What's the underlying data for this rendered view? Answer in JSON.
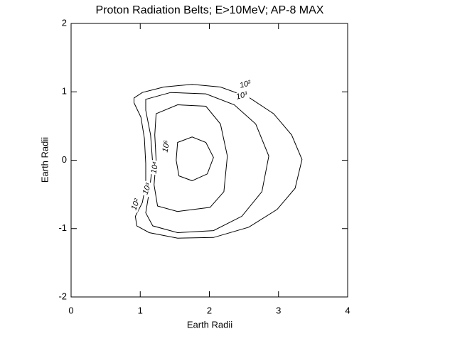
{
  "chart_data": {
    "type": "contour",
    "title": "Proton Radiation Belts; E>10MeV; AP-8 MAX",
    "x_label": "Earth Radii",
    "y_label": "Earth Radii",
    "xlim": [
      0,
      4
    ],
    "ylim": [
      -2,
      2
    ],
    "xticks": [
      0,
      1,
      2,
      3,
      4
    ],
    "yticks": [
      -2,
      -1,
      0,
      1,
      2
    ],
    "color": "#000000",
    "contours": [
      {
        "level": {
          "value": 100,
          "label": "10²"
        },
        "x": [
          0.91,
          1.03,
          1.34,
          1.75,
          2.16,
          2.57,
          2.93,
          3.19,
          3.34,
          3.24,
          2.98,
          2.57,
          2.06,
          1.54,
          1.13,
          0.95,
          0.93,
          1.03,
          1.08,
          1.08,
          1.06,
          1.01,
          0.91
        ],
        "y": [
          0.91,
          0.99,
          1.07,
          1.11,
          1.07,
          0.92,
          0.68,
          0.37,
          0.01,
          -0.41,
          -0.72,
          -0.98,
          -1.13,
          -1.14,
          -1.06,
          -0.96,
          -0.82,
          -0.62,
          -0.36,
          -0.05,
          0.32,
          0.63,
          0.84
        ]
      },
      {
        "level": {
          "value": 1000,
          "label": "10³"
        },
        "x": [
          1.08,
          1.44,
          1.95,
          2.36,
          2.67,
          2.86,
          2.76,
          2.47,
          2.06,
          1.54,
          1.18,
          1.08,
          1.13,
          1.18,
          1.15,
          1.08
        ],
        "y": [
          0.89,
          0.99,
          0.97,
          0.81,
          0.53,
          0.06,
          -0.46,
          -0.82,
          -1.03,
          -1.06,
          -0.96,
          -0.77,
          -0.46,
          -0.05,
          0.37,
          0.73
        ]
      },
      {
        "level": {
          "value": 10000,
          "label": "10⁴"
        },
        "x": [
          1.23,
          1.54,
          1.95,
          2.16,
          2.26,
          2.21,
          2.01,
          1.54,
          1.25,
          1.2,
          1.23,
          1.21
        ],
        "y": [
          0.68,
          0.81,
          0.79,
          0.53,
          0.06,
          -0.46,
          -0.69,
          -0.75,
          -0.67,
          -0.36,
          0.0,
          0.37
        ]
      },
      {
        "level": {
          "value": 100000,
          "label": "10⁵"
        },
        "x": [
          1.54,
          1.75,
          1.95,
          2.06,
          1.97,
          1.75,
          1.56,
          1.52
        ],
        "y": [
          0.26,
          0.34,
          0.26,
          0.04,
          -0.2,
          -0.3,
          -0.23,
          0.0
        ]
      }
    ]
  }
}
